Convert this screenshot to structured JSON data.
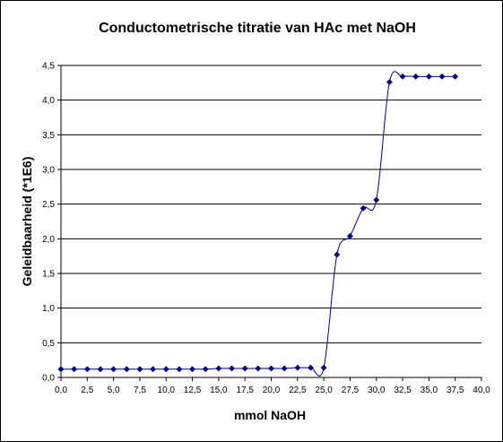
{
  "chart_data": {
    "type": "line",
    "title": "Conductometrische titratie van HAc met NaOH",
    "xlabel": "mmol NaOH",
    "ylabel": "Geleidbaarheid (*1E6)",
    "xlim": [
      0,
      40
    ],
    "ylim": [
      0,
      4.5
    ],
    "x_ticks": [
      "0,0",
      "2,5",
      "5,0",
      "7,5",
      "10,0",
      "12,5",
      "15,0",
      "17,5",
      "20,0",
      "22,5",
      "25,0",
      "27,5",
      "30,0",
      "32,5",
      "35,0",
      "37,5",
      "40,0"
    ],
    "y_ticks": [
      "0,0",
      "0,5",
      "1,0",
      "1,5",
      "2,0",
      "2,5",
      "3,0",
      "3,5",
      "4,0",
      "4,5"
    ],
    "grid": "horizontal",
    "legend": "none",
    "series": [
      {
        "color": "#000080",
        "marker": "diamond",
        "smooth": true,
        "x": [
          0,
          1.25,
          2.5,
          3.75,
          5,
          6.25,
          7.5,
          8.75,
          10,
          11.25,
          12.5,
          13.75,
          15,
          16.25,
          17.5,
          18.75,
          20,
          21.25,
          22.5,
          23.75,
          25,
          26.25,
          27.5,
          28.75,
          30,
          31.25,
          32.5,
          33.75,
          35,
          36.25,
          37.5
        ],
        "y": [
          0.12,
          0.12,
          0.12,
          0.12,
          0.12,
          0.12,
          0.12,
          0.12,
          0.12,
          0.12,
          0.12,
          0.12,
          0.13,
          0.13,
          0.13,
          0.13,
          0.13,
          0.13,
          0.14,
          0.14,
          0.14,
          1.77,
          2.04,
          2.44,
          2.56,
          4.26,
          4.34,
          4.34,
          4.34,
          4.34,
          4.34
        ]
      }
    ]
  }
}
